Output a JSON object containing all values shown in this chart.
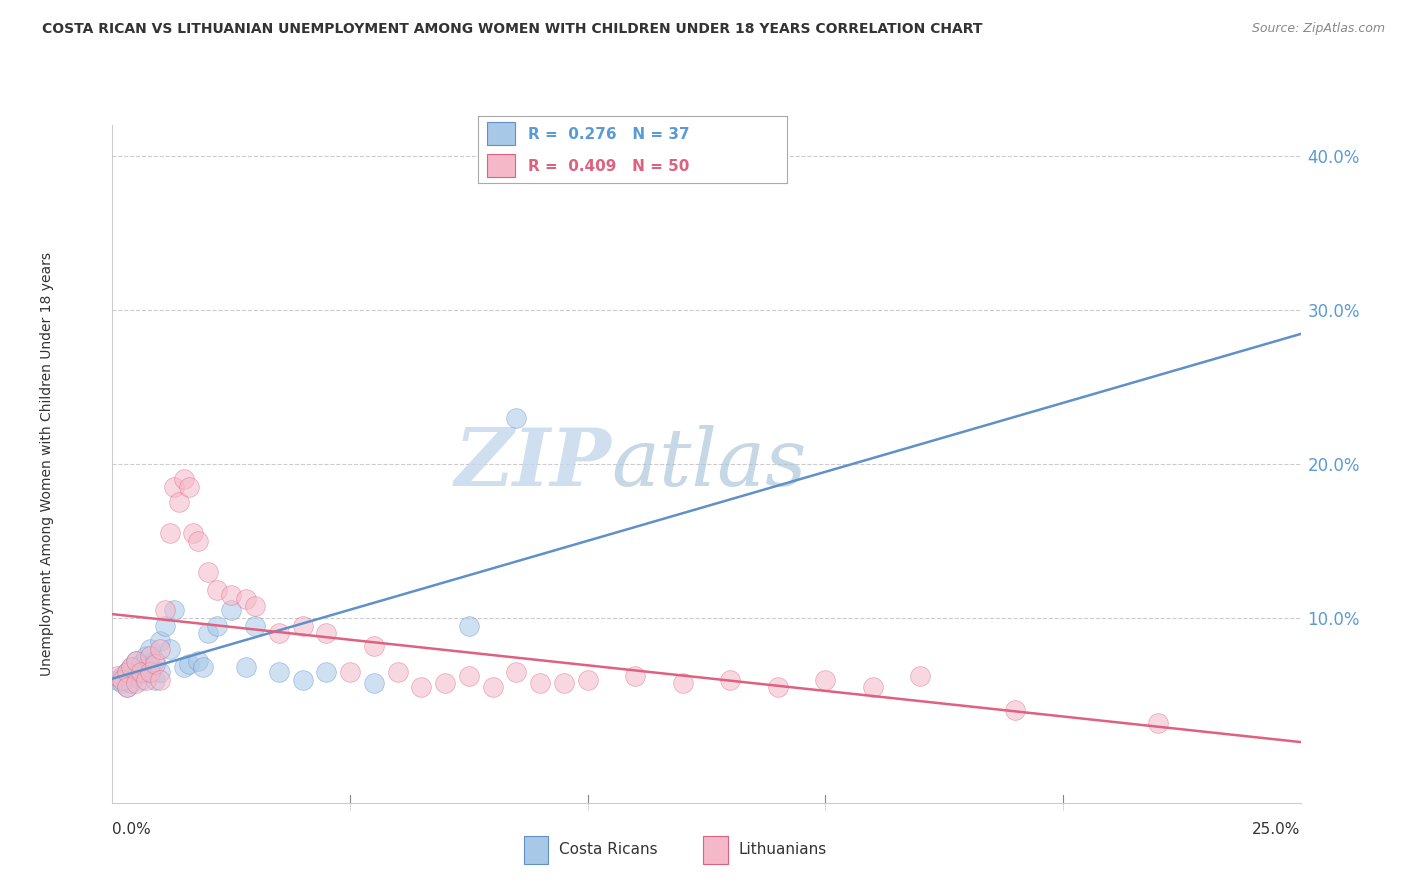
{
  "title": "COSTA RICAN VS LITHUANIAN UNEMPLOYMENT AMONG WOMEN WITH CHILDREN UNDER 18 YEARS CORRELATION CHART",
  "source": "Source: ZipAtlas.com",
  "xlabel_bottom_left": "0.0%",
  "xlabel_bottom_right": "25.0%",
  "ylabel": "Unemployment Among Women with Children Under 18 years",
  "y_tick_labels": [
    "40.0%",
    "30.0%",
    "20.0%",
    "10.0%"
  ],
  "y_tick_values": [
    0.4,
    0.3,
    0.2,
    0.1
  ],
  "x_range": [
    0.0,
    0.25
  ],
  "y_range": [
    -0.02,
    0.42
  ],
  "watermark_zip": "ZIP",
  "watermark_atlas": "atlas",
  "legend_cr": "R =  0.276   N = 37",
  "legend_lt": "R =  0.409   N = 50",
  "legend_label_cr": "Costa Ricans",
  "legend_label_lt": "Lithuanians",
  "color_cr": "#a8c8e8",
  "color_lt": "#f4b8c8",
  "color_cr_line": "#6090c8",
  "color_lt_line": "#e06080",
  "background_color": "#ffffff",
  "grid_color": "#cccccc",
  "cr_x": [
    0.001,
    0.002,
    0.002,
    0.003,
    0.003,
    0.004,
    0.004,
    0.005,
    0.005,
    0.006,
    0.006,
    0.007,
    0.007,
    0.008,
    0.008,
    0.009,
    0.009,
    0.01,
    0.01,
    0.011,
    0.012,
    0.013,
    0.015,
    0.016,
    0.018,
    0.019,
    0.02,
    0.022,
    0.025,
    0.028,
    0.03,
    0.035,
    0.04,
    0.045,
    0.055,
    0.075,
    0.085
  ],
  "cr_y": [
    0.06,
    0.062,
    0.058,
    0.065,
    0.055,
    0.068,
    0.058,
    0.072,
    0.062,
    0.07,
    0.06,
    0.075,
    0.065,
    0.08,
    0.068,
    0.072,
    0.06,
    0.085,
    0.065,
    0.095,
    0.08,
    0.105,
    0.068,
    0.07,
    0.072,
    0.068,
    0.09,
    0.095,
    0.105,
    0.068,
    0.095,
    0.065,
    0.06,
    0.065,
    0.058,
    0.095,
    0.23
  ],
  "lt_x": [
    0.001,
    0.002,
    0.003,
    0.003,
    0.004,
    0.005,
    0.005,
    0.006,
    0.007,
    0.008,
    0.008,
    0.009,
    0.01,
    0.01,
    0.011,
    0.012,
    0.013,
    0.014,
    0.015,
    0.016,
    0.017,
    0.018,
    0.02,
    0.022,
    0.025,
    0.028,
    0.03,
    0.035,
    0.04,
    0.045,
    0.05,
    0.055,
    0.06,
    0.065,
    0.07,
    0.075,
    0.08,
    0.085,
    0.09,
    0.095,
    0.1,
    0.11,
    0.12,
    0.13,
    0.14,
    0.15,
    0.16,
    0.17,
    0.19,
    0.22
  ],
  "lt_y": [
    0.062,
    0.06,
    0.065,
    0.055,
    0.068,
    0.058,
    0.072,
    0.065,
    0.06,
    0.075,
    0.065,
    0.07,
    0.08,
    0.06,
    0.105,
    0.155,
    0.185,
    0.175,
    0.19,
    0.185,
    0.155,
    0.15,
    0.13,
    0.118,
    0.115,
    0.112,
    0.108,
    0.09,
    0.095,
    0.09,
    0.065,
    0.082,
    0.065,
    0.055,
    0.058,
    0.062,
    0.055,
    0.065,
    0.058,
    0.058,
    0.06,
    0.062,
    0.058,
    0.06,
    0.055,
    0.06,
    0.055,
    0.062,
    0.04,
    0.032
  ]
}
